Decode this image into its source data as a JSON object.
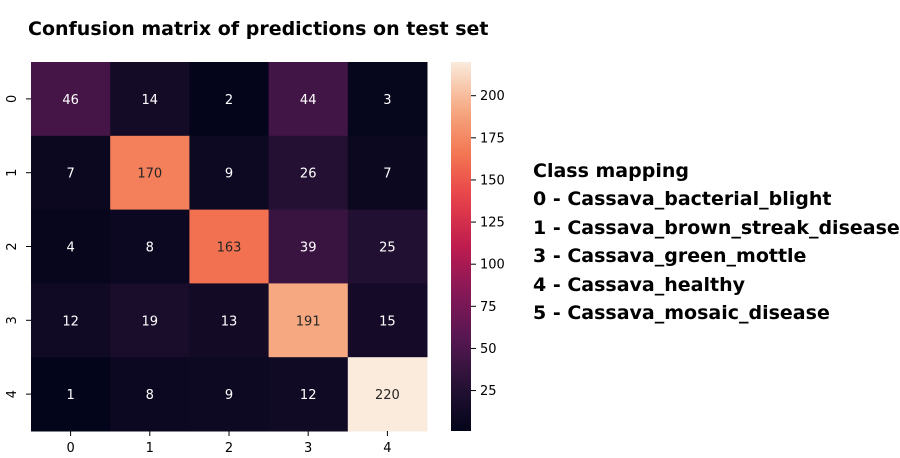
{
  "chart_data": {
    "type": "heatmap",
    "title": "Confusion matrix of predictions on test set",
    "x_tick_labels": [
      "0",
      "1",
      "2",
      "3",
      "4"
    ],
    "y_tick_labels": [
      "0",
      "1",
      "2",
      "3",
      "4"
    ],
    "values": [
      [
        46,
        14,
        2,
        44,
        3
      ],
      [
        7,
        170,
        9,
        26,
        7
      ],
      [
        4,
        8,
        163,
        39,
        25
      ],
      [
        12,
        19,
        13,
        191,
        15
      ],
      [
        1,
        8,
        9,
        12,
        220
      ]
    ],
    "colorbar": {
      "min": 1,
      "max": 220,
      "ticks": [
        25,
        50,
        75,
        100,
        125,
        150,
        175,
        200
      ],
      "colormap": "rocket"
    }
  },
  "mapping": {
    "title": "Class mapping",
    "items": [
      "0 - Cassava_bacterial_blight",
      "1 - Cassava_brown_streak_disease",
      "3 - Cassava_green_mottle",
      "4 - Cassava_healthy",
      "5 - Cassava_mosaic_disease"
    ]
  }
}
